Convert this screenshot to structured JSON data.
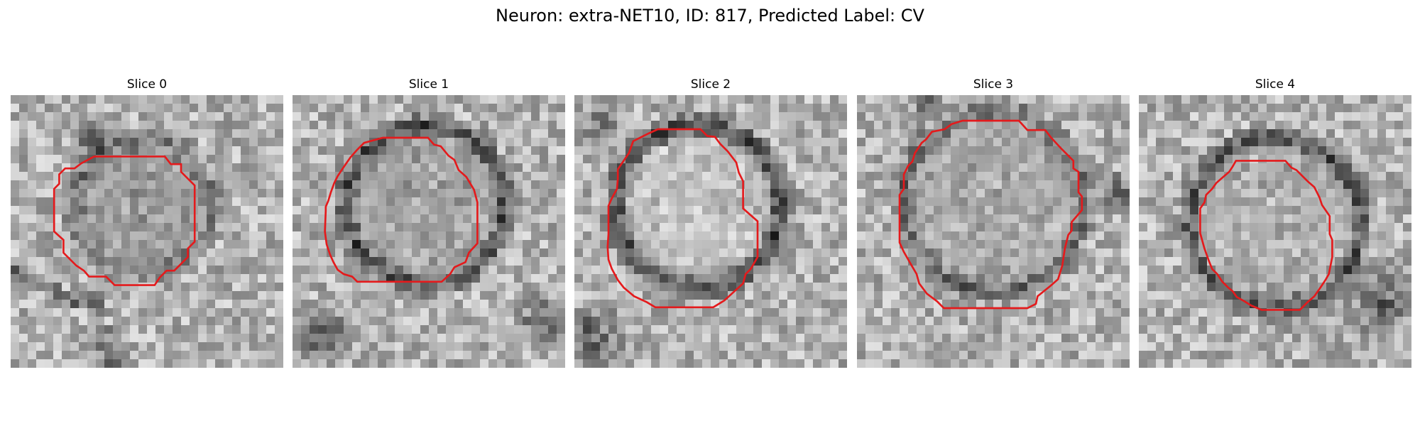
{
  "figure": {
    "title": "Neuron: extra-NET10, ID: 817, Predicted Label: CV"
  },
  "colors": {
    "contour": "#e41a1c",
    "background": "#ffffff"
  },
  "panels": [
    {
      "title": "Slice 0",
      "seed": 11,
      "dark_ring": false,
      "bright_center": false,
      "contour": [
        [
          160,
          88
        ],
        [
          205,
          88
        ],
        [
          218,
          100
        ],
        [
          222,
          104
        ],
        [
          222,
          150
        ],
        [
          215,
          160
        ],
        [
          202,
          165
        ],
        [
          188,
          175
        ],
        [
          180,
          180
        ],
        [
          120,
          180
        ],
        [
          112,
          170
        ],
        [
          100,
          165
        ],
        [
          80,
          160
        ],
        [
          78,
          140
        ],
        [
          73,
          138
        ],
        [
          70,
          130
        ],
        [
          65,
          128
        ],
        [
          62,
          120
        ],
        [
          60,
          90
        ],
        [
          70,
          80
        ],
        [
          72,
          70
        ],
        [
          80,
          60
        ],
        [
          88,
          55
        ],
        [
          98,
          50
        ],
        [
          110,
          45
        ],
        [
          120,
          40
        ],
        [
          125,
          35
        ],
        [
          180,
          35
        ],
        [
          185,
          40
        ],
        [
          200,
          45
        ],
        [
          210,
          55
        ],
        [
          215,
          60
        ],
        [
          218,
          70
        ],
        [
          220,
          80
        ],
        [
          222,
          88
        ],
        [
          222,
          104
        ]
      ]
    },
    {
      "seed": 23,
      "title": "Slice 1"
    },
    {
      "seed": 37,
      "title": "Slice 2"
    },
    {
      "seed": 51,
      "title": "Slice 3"
    },
    {
      "seed": 67,
      "title": "Slice 4"
    }
  ]
}
